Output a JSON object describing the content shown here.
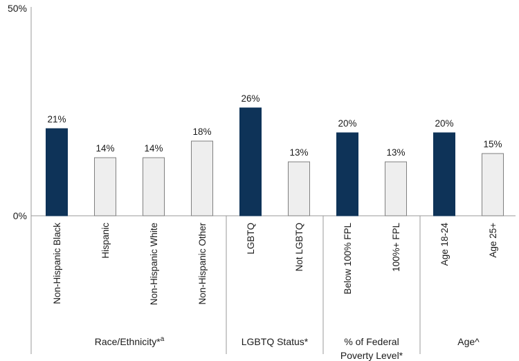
{
  "chart_data": {
    "type": "bar",
    "categories": [
      "Non-Hispanic Black",
      "Hispanic",
      "Non-Hispanic White",
      "Non-Hispanic Other",
      "LGBTQ",
      "Not LGBTQ",
      "Below 100% FPL",
      "100%+ FPL",
      "Age 18-24",
      "Age 25+"
    ],
    "values": [
      21,
      14,
      14,
      18,
      26,
      13,
      20,
      13,
      20,
      15
    ],
    "value_labels": [
      "21%",
      "14%",
      "14%",
      "18%",
      "26%",
      "13%",
      "20%",
      "13%",
      "20%",
      "15%"
    ],
    "highlighted": [
      true,
      false,
      false,
      false,
      true,
      false,
      true,
      false,
      true,
      false
    ],
    "groups": [
      {
        "label_lines": [
          "Race/Ethnicity*"
        ],
        "superscript": "a",
        "start": 0,
        "end": 3
      },
      {
        "label_lines": [
          "LGBTQ Status*"
        ],
        "superscript": "",
        "start": 4,
        "end": 5
      },
      {
        "label_lines": [
          "% of Federal",
          "Poverty Level*"
        ],
        "superscript": "",
        "start": 6,
        "end": 7
      },
      {
        "label_lines": [
          "Age^"
        ],
        "superscript": "",
        "start": 8,
        "end": 9
      }
    ],
    "yticks": [
      "0%",
      "50%"
    ],
    "ylim": [
      0,
      50
    ],
    "colors": {
      "highlight": "#0e3358",
      "normal": "#eeeeee",
      "bar_stroke": "#7f7f7f",
      "axis": "#9a9a9a"
    }
  }
}
